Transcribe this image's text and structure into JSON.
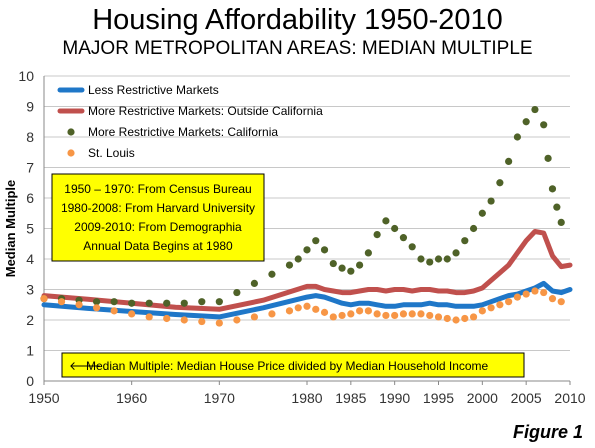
{
  "title": "Housing Affordability 1950-2010",
  "subtitle": "MAJOR METROPOLITAN AREAS: MEDIAN MULTIPLE",
  "figure_label": "Figure 1",
  "info_box": {
    "lines": [
      "1950 – 1970: From Census Bureau",
      "1980-2008: From Harvard University",
      "2009-2010: From Demographia",
      "Annual Data Begins at 1980"
    ],
    "bg_color": "#ffff00"
  },
  "note_box": {
    "arrow": "🡐",
    "text": "Median Multiple: Median House Price divided by Median Household Income",
    "bg_color": "#ffff00"
  },
  "chart_data": {
    "type": "line",
    "ylabel": "Median Multiple",
    "xlabel": "",
    "xlim": [
      1950,
      2010
    ],
    "ylim": [
      0,
      10
    ],
    "x_ticks": [
      1950,
      1960,
      1970,
      1980,
      1985,
      1990,
      1995,
      2000,
      2005,
      2010
    ],
    "y_ticks": [
      0,
      1,
      2,
      3,
      4,
      5,
      6,
      7,
      8,
      9,
      10
    ],
    "grid": "horizontal",
    "legend_position": "top-left",
    "series": [
      {
        "name": "Less Restrictive Markets",
        "style": "line",
        "color": "#1f77c8",
        "points": [
          [
            1950,
            2.5
          ],
          [
            1955,
            2.38
          ],
          [
            1960,
            2.28
          ],
          [
            1965,
            2.18
          ],
          [
            1970,
            2.1
          ],
          [
            1975,
            2.4
          ],
          [
            1980,
            2.75
          ],
          [
            1981,
            2.8
          ],
          [
            1982,
            2.75
          ],
          [
            1983,
            2.65
          ],
          [
            1984,
            2.55
          ],
          [
            1985,
            2.5
          ],
          [
            1986,
            2.55
          ],
          [
            1987,
            2.55
          ],
          [
            1988,
            2.5
          ],
          [
            1989,
            2.45
          ],
          [
            1990,
            2.45
          ],
          [
            1991,
            2.5
          ],
          [
            1992,
            2.5
          ],
          [
            1993,
            2.5
          ],
          [
            1994,
            2.55
          ],
          [
            1995,
            2.5
          ],
          [
            1996,
            2.5
          ],
          [
            1997,
            2.45
          ],
          [
            1998,
            2.45
          ],
          [
            1999,
            2.45
          ],
          [
            2000,
            2.5
          ],
          [
            2001,
            2.6
          ],
          [
            2002,
            2.7
          ],
          [
            2003,
            2.8
          ],
          [
            2004,
            2.85
          ],
          [
            2005,
            2.95
          ],
          [
            2006,
            3.05
          ],
          [
            2007,
            3.2
          ],
          [
            2008,
            2.95
          ],
          [
            2009,
            2.9
          ],
          [
            2010,
            3.0
          ]
        ]
      },
      {
        "name": "More Restrictive Markets: Outside California",
        "style": "line",
        "color": "#c0504d",
        "points": [
          [
            1950,
            2.8
          ],
          [
            1955,
            2.68
          ],
          [
            1960,
            2.55
          ],
          [
            1965,
            2.42
          ],
          [
            1970,
            2.35
          ],
          [
            1975,
            2.65
          ],
          [
            1980,
            3.1
          ],
          [
            1981,
            3.1
          ],
          [
            1982,
            3.0
          ],
          [
            1983,
            2.95
          ],
          [
            1984,
            2.9
          ],
          [
            1985,
            2.9
          ],
          [
            1986,
            2.95
          ],
          [
            1987,
            3.0
          ],
          [
            1988,
            3.0
          ],
          [
            1989,
            2.95
          ],
          [
            1990,
            3.0
          ],
          [
            1991,
            3.0
          ],
          [
            1992,
            2.95
          ],
          [
            1993,
            3.0
          ],
          [
            1994,
            3.0
          ],
          [
            1995,
            2.95
          ],
          [
            1996,
            2.95
          ],
          [
            1997,
            2.9
          ],
          [
            1998,
            2.9
          ],
          [
            1999,
            2.95
          ],
          [
            2000,
            3.05
          ],
          [
            2001,
            3.3
          ],
          [
            2002,
            3.55
          ],
          [
            2003,
            3.8
          ],
          [
            2004,
            4.2
          ],
          [
            2005,
            4.6
          ],
          [
            2006,
            4.9
          ],
          [
            2007,
            4.85
          ],
          [
            2008,
            4.1
          ],
          [
            2009,
            3.75
          ],
          [
            2010,
            3.8
          ]
        ]
      },
      {
        "name": "More Restrictive Markets: California",
        "style": "dots",
        "color": "#4f6228",
        "points": [
          [
            1950,
            2.7
          ],
          [
            1952,
            2.7
          ],
          [
            1954,
            2.65
          ],
          [
            1956,
            2.6
          ],
          [
            1958,
            2.6
          ],
          [
            1960,
            2.55
          ],
          [
            1962,
            2.55
          ],
          [
            1964,
            2.55
          ],
          [
            1966,
            2.55
          ],
          [
            1968,
            2.6
          ],
          [
            1970,
            2.6
          ],
          [
            1972,
            2.9
          ],
          [
            1974,
            3.2
          ],
          [
            1976,
            3.5
          ],
          [
            1978,
            3.8
          ],
          [
            1979,
            4.0
          ],
          [
            1980,
            4.3
          ],
          [
            1981,
            4.6
          ],
          [
            1982,
            4.3
          ],
          [
            1983,
            3.85
          ],
          [
            1984,
            3.7
          ],
          [
            1985,
            3.6
          ],
          [
            1986,
            3.8
          ],
          [
            1987,
            4.2
          ],
          [
            1988,
            4.8
          ],
          [
            1989,
            5.25
          ],
          [
            1990,
            5.0
          ],
          [
            1991,
            4.7
          ],
          [
            1992,
            4.4
          ],
          [
            1993,
            4.0
          ],
          [
            1994,
            3.9
          ],
          [
            1995,
            4.0
          ],
          [
            1996,
            4.0
          ],
          [
            1997,
            4.2
          ],
          [
            1998,
            4.6
          ],
          [
            1999,
            5.0
          ],
          [
            2000,
            5.5
          ],
          [
            2001,
            5.9
          ],
          [
            2002,
            6.5
          ],
          [
            2003,
            7.2
          ],
          [
            2004,
            8.0
          ],
          [
            2005,
            8.5
          ],
          [
            2006,
            8.9
          ],
          [
            2007,
            8.4
          ],
          [
            2007.5,
            7.3
          ],
          [
            2008,
            6.3
          ],
          [
            2008.5,
            5.7
          ],
          [
            2009,
            5.2
          ]
        ]
      },
      {
        "name": "St. Louis",
        "style": "dots",
        "color": "#f79646",
        "points": [
          [
            1950,
            2.7
          ],
          [
            1952,
            2.6
          ],
          [
            1954,
            2.5
          ],
          [
            1956,
            2.4
          ],
          [
            1958,
            2.3
          ],
          [
            1960,
            2.2
          ],
          [
            1962,
            2.1
          ],
          [
            1964,
            2.05
          ],
          [
            1966,
            2.0
          ],
          [
            1968,
            1.95
          ],
          [
            1970,
            1.9
          ],
          [
            1972,
            2.0
          ],
          [
            1974,
            2.1
          ],
          [
            1976,
            2.2
          ],
          [
            1978,
            2.3
          ],
          [
            1979,
            2.4
          ],
          [
            1980,
            2.45
          ],
          [
            1981,
            2.35
          ],
          [
            1982,
            2.25
          ],
          [
            1983,
            2.1
          ],
          [
            1984,
            2.15
          ],
          [
            1985,
            2.2
          ],
          [
            1986,
            2.3
          ],
          [
            1987,
            2.3
          ],
          [
            1988,
            2.2
          ],
          [
            1989,
            2.15
          ],
          [
            1990,
            2.15
          ],
          [
            1991,
            2.2
          ],
          [
            1992,
            2.2
          ],
          [
            1993,
            2.2
          ],
          [
            1994,
            2.15
          ],
          [
            1995,
            2.1
          ],
          [
            1996,
            2.05
          ],
          [
            1997,
            2.0
          ],
          [
            1998,
            2.05
          ],
          [
            1999,
            2.1
          ],
          [
            2000,
            2.3
          ],
          [
            2001,
            2.4
          ],
          [
            2002,
            2.5
          ],
          [
            2003,
            2.6
          ],
          [
            2004,
            2.75
          ],
          [
            2005,
            2.85
          ],
          [
            2006,
            2.95
          ],
          [
            2007,
            2.9
          ],
          [
            2008,
            2.7
          ],
          [
            2009,
            2.6
          ]
        ]
      }
    ]
  }
}
